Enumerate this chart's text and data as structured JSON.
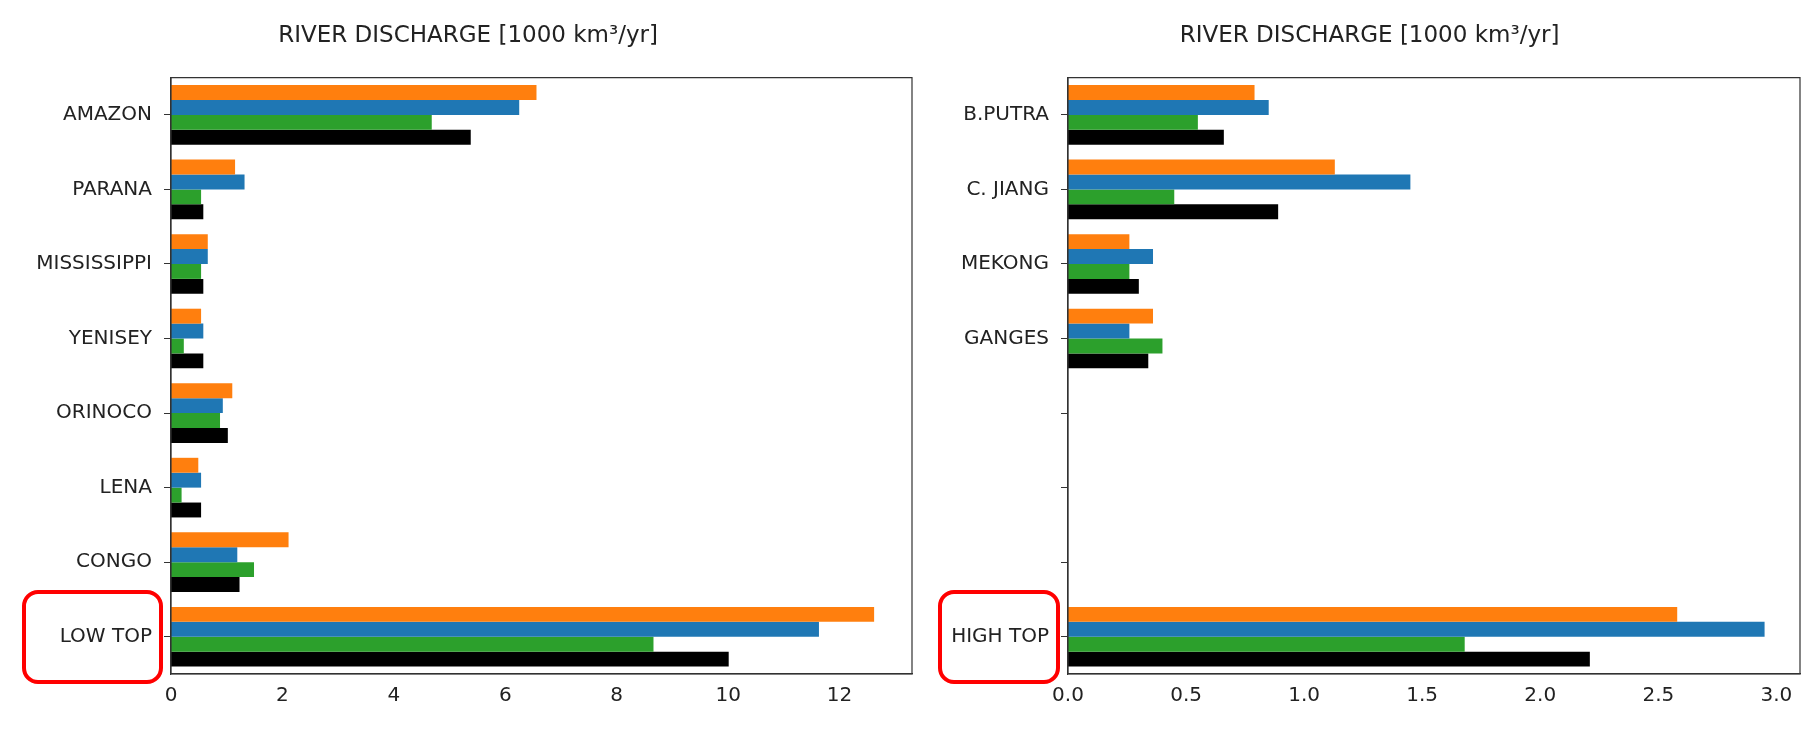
{
  "chart_data": [
    {
      "type": "bar",
      "orientation": "horizontal",
      "title": "RIVER DISCHARGE [1000 km³/yr]",
      "categories": [
        "AMAZON",
        "PARANA",
        "MISSISSIPPI",
        "YENISEY",
        "ORINOCO",
        "LENA",
        "CONGO",
        "LOW TOP"
      ],
      "series": [
        {
          "color": "#ff7f0e",
          "values": [
            6.56,
            1.15,
            0.66,
            0.54,
            1.1,
            0.49,
            2.11,
            12.62
          ]
        },
        {
          "color": "#1f77b4",
          "values": [
            6.25,
            1.32,
            0.66,
            0.58,
            0.93,
            0.54,
            1.19,
            11.63
          ]
        },
        {
          "color": "#2ca02c",
          "values": [
            4.68,
            0.54,
            0.54,
            0.23,
            0.88,
            0.19,
            1.49,
            8.66
          ]
        },
        {
          "color": "#000000",
          "values": [
            5.38,
            0.58,
            0.58,
            0.58,
            1.02,
            0.54,
            1.23,
            10.01
          ]
        }
      ],
      "xlim": [
        0,
        13.3
      ],
      "xticks": [
        0,
        2,
        4,
        6,
        8,
        10,
        12
      ],
      "grid": false,
      "legend": false
    },
    {
      "type": "bar",
      "orientation": "horizontal",
      "title": "RIVER DISCHARGE [1000 km³/yr]",
      "categories": [
        "B.PUTRA",
        "C. JIANG",
        "MEKONG",
        "GANGES",
        null,
        null,
        null,
        "HIGH TOP"
      ],
      "series": [
        {
          "color": "#ff7f0e",
          "values": [
            0.79,
            1.13,
            0.26,
            0.36,
            null,
            null,
            null,
            2.58
          ]
        },
        {
          "color": "#1f77b4",
          "values": [
            0.85,
            1.45,
            0.36,
            0.26,
            null,
            null,
            null,
            2.95
          ]
        },
        {
          "color": "#2ca02c",
          "values": [
            0.55,
            0.45,
            0.26,
            0.4,
            null,
            null,
            null,
            1.68
          ]
        },
        {
          "color": "#000000",
          "values": [
            0.66,
            0.89,
            0.3,
            0.34,
            null,
            null,
            null,
            2.21
          ]
        }
      ],
      "xlim": [
        0,
        3.1
      ],
      "xticks": [
        {
          "value": 0,
          "label": "0.0"
        },
        {
          "value": 0.5,
          "label": "0.5"
        },
        {
          "value": 1,
          "label": "1.0"
        },
        {
          "value": 1.5,
          "label": "1.5"
        },
        {
          "value": 2,
          "label": "2.0"
        },
        {
          "value": 2.5,
          "label": "2.5"
        },
        {
          "value": 3,
          "label": "3.0"
        }
      ],
      "grid": false,
      "legend": false
    }
  ]
}
